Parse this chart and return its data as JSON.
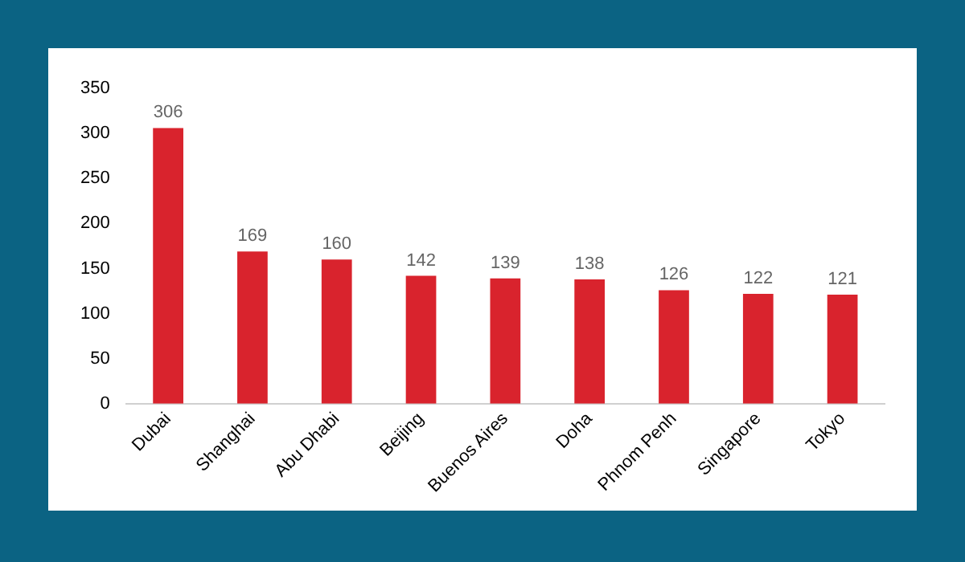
{
  "chart_data": {
    "type": "bar",
    "categories": [
      "Dubai",
      "Shanghai",
      "Abu Dhabi",
      "Beijing",
      "Buenos Aires",
      "Doha",
      "Phnom Penh",
      "Singapore",
      "Tokyo"
    ],
    "values": [
      306,
      169,
      160,
      142,
      139,
      138,
      126,
      122,
      121
    ],
    "color": "#d9232d",
    "ylim": [
      0,
      350
    ],
    "yticks": [
      0,
      50,
      100,
      150,
      200,
      250,
      300,
      350
    ],
    "grid": false,
    "legend": false,
    "data_labels": true
  }
}
